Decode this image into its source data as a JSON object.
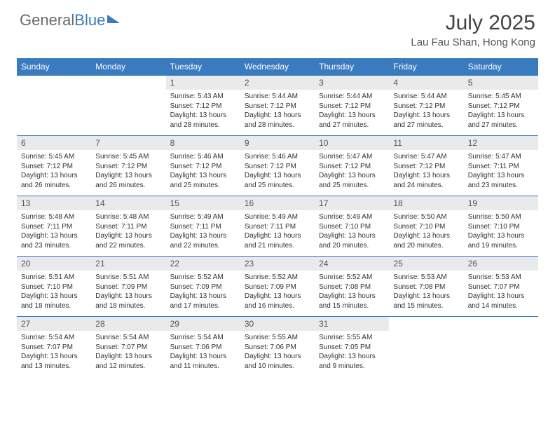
{
  "brand": {
    "part1": "General",
    "part2": "Blue"
  },
  "title": "July 2025",
  "location": "Lau Fau Shan, Hong Kong",
  "colors": {
    "accent": "#3a7abf",
    "dow_bg": "#3a7abf",
    "daynum_bg": "#e9eaec",
    "text": "#333333",
    "border": "#3a7abf"
  },
  "days_of_week": [
    "Sunday",
    "Monday",
    "Tuesday",
    "Wednesday",
    "Thursday",
    "Friday",
    "Saturday"
  ],
  "weeks": [
    [
      null,
      null,
      {
        "n": "1",
        "sr": "5:43 AM",
        "ss": "7:12 PM",
        "dl": "13 hours and 28 minutes."
      },
      {
        "n": "2",
        "sr": "5:44 AM",
        "ss": "7:12 PM",
        "dl": "13 hours and 28 minutes."
      },
      {
        "n": "3",
        "sr": "5:44 AM",
        "ss": "7:12 PM",
        "dl": "13 hours and 27 minutes."
      },
      {
        "n": "4",
        "sr": "5:44 AM",
        "ss": "7:12 PM",
        "dl": "13 hours and 27 minutes."
      },
      {
        "n": "5",
        "sr": "5:45 AM",
        "ss": "7:12 PM",
        "dl": "13 hours and 27 minutes."
      }
    ],
    [
      {
        "n": "6",
        "sr": "5:45 AM",
        "ss": "7:12 PM",
        "dl": "13 hours and 26 minutes."
      },
      {
        "n": "7",
        "sr": "5:45 AM",
        "ss": "7:12 PM",
        "dl": "13 hours and 26 minutes."
      },
      {
        "n": "8",
        "sr": "5:46 AM",
        "ss": "7:12 PM",
        "dl": "13 hours and 25 minutes."
      },
      {
        "n": "9",
        "sr": "5:46 AM",
        "ss": "7:12 PM",
        "dl": "13 hours and 25 minutes."
      },
      {
        "n": "10",
        "sr": "5:47 AM",
        "ss": "7:12 PM",
        "dl": "13 hours and 25 minutes."
      },
      {
        "n": "11",
        "sr": "5:47 AM",
        "ss": "7:12 PM",
        "dl": "13 hours and 24 minutes."
      },
      {
        "n": "12",
        "sr": "5:47 AM",
        "ss": "7:11 PM",
        "dl": "13 hours and 23 minutes."
      }
    ],
    [
      {
        "n": "13",
        "sr": "5:48 AM",
        "ss": "7:11 PM",
        "dl": "13 hours and 23 minutes."
      },
      {
        "n": "14",
        "sr": "5:48 AM",
        "ss": "7:11 PM",
        "dl": "13 hours and 22 minutes."
      },
      {
        "n": "15",
        "sr": "5:49 AM",
        "ss": "7:11 PM",
        "dl": "13 hours and 22 minutes."
      },
      {
        "n": "16",
        "sr": "5:49 AM",
        "ss": "7:11 PM",
        "dl": "13 hours and 21 minutes."
      },
      {
        "n": "17",
        "sr": "5:49 AM",
        "ss": "7:10 PM",
        "dl": "13 hours and 20 minutes."
      },
      {
        "n": "18",
        "sr": "5:50 AM",
        "ss": "7:10 PM",
        "dl": "13 hours and 20 minutes."
      },
      {
        "n": "19",
        "sr": "5:50 AM",
        "ss": "7:10 PM",
        "dl": "13 hours and 19 minutes."
      }
    ],
    [
      {
        "n": "20",
        "sr": "5:51 AM",
        "ss": "7:10 PM",
        "dl": "13 hours and 18 minutes."
      },
      {
        "n": "21",
        "sr": "5:51 AM",
        "ss": "7:09 PM",
        "dl": "13 hours and 18 minutes."
      },
      {
        "n": "22",
        "sr": "5:52 AM",
        "ss": "7:09 PM",
        "dl": "13 hours and 17 minutes."
      },
      {
        "n": "23",
        "sr": "5:52 AM",
        "ss": "7:09 PM",
        "dl": "13 hours and 16 minutes."
      },
      {
        "n": "24",
        "sr": "5:52 AM",
        "ss": "7:08 PM",
        "dl": "13 hours and 15 minutes."
      },
      {
        "n": "25",
        "sr": "5:53 AM",
        "ss": "7:08 PM",
        "dl": "13 hours and 15 minutes."
      },
      {
        "n": "26",
        "sr": "5:53 AM",
        "ss": "7:07 PM",
        "dl": "13 hours and 14 minutes."
      }
    ],
    [
      {
        "n": "27",
        "sr": "5:54 AM",
        "ss": "7:07 PM",
        "dl": "13 hours and 13 minutes."
      },
      {
        "n": "28",
        "sr": "5:54 AM",
        "ss": "7:07 PM",
        "dl": "13 hours and 12 minutes."
      },
      {
        "n": "29",
        "sr": "5:54 AM",
        "ss": "7:06 PM",
        "dl": "13 hours and 11 minutes."
      },
      {
        "n": "30",
        "sr": "5:55 AM",
        "ss": "7:06 PM",
        "dl": "13 hours and 10 minutes."
      },
      {
        "n": "31",
        "sr": "5:55 AM",
        "ss": "7:05 PM",
        "dl": "13 hours and 9 minutes."
      },
      null,
      null
    ]
  ],
  "labels": {
    "sunrise": "Sunrise:",
    "sunset": "Sunset:",
    "daylight": "Daylight:"
  }
}
